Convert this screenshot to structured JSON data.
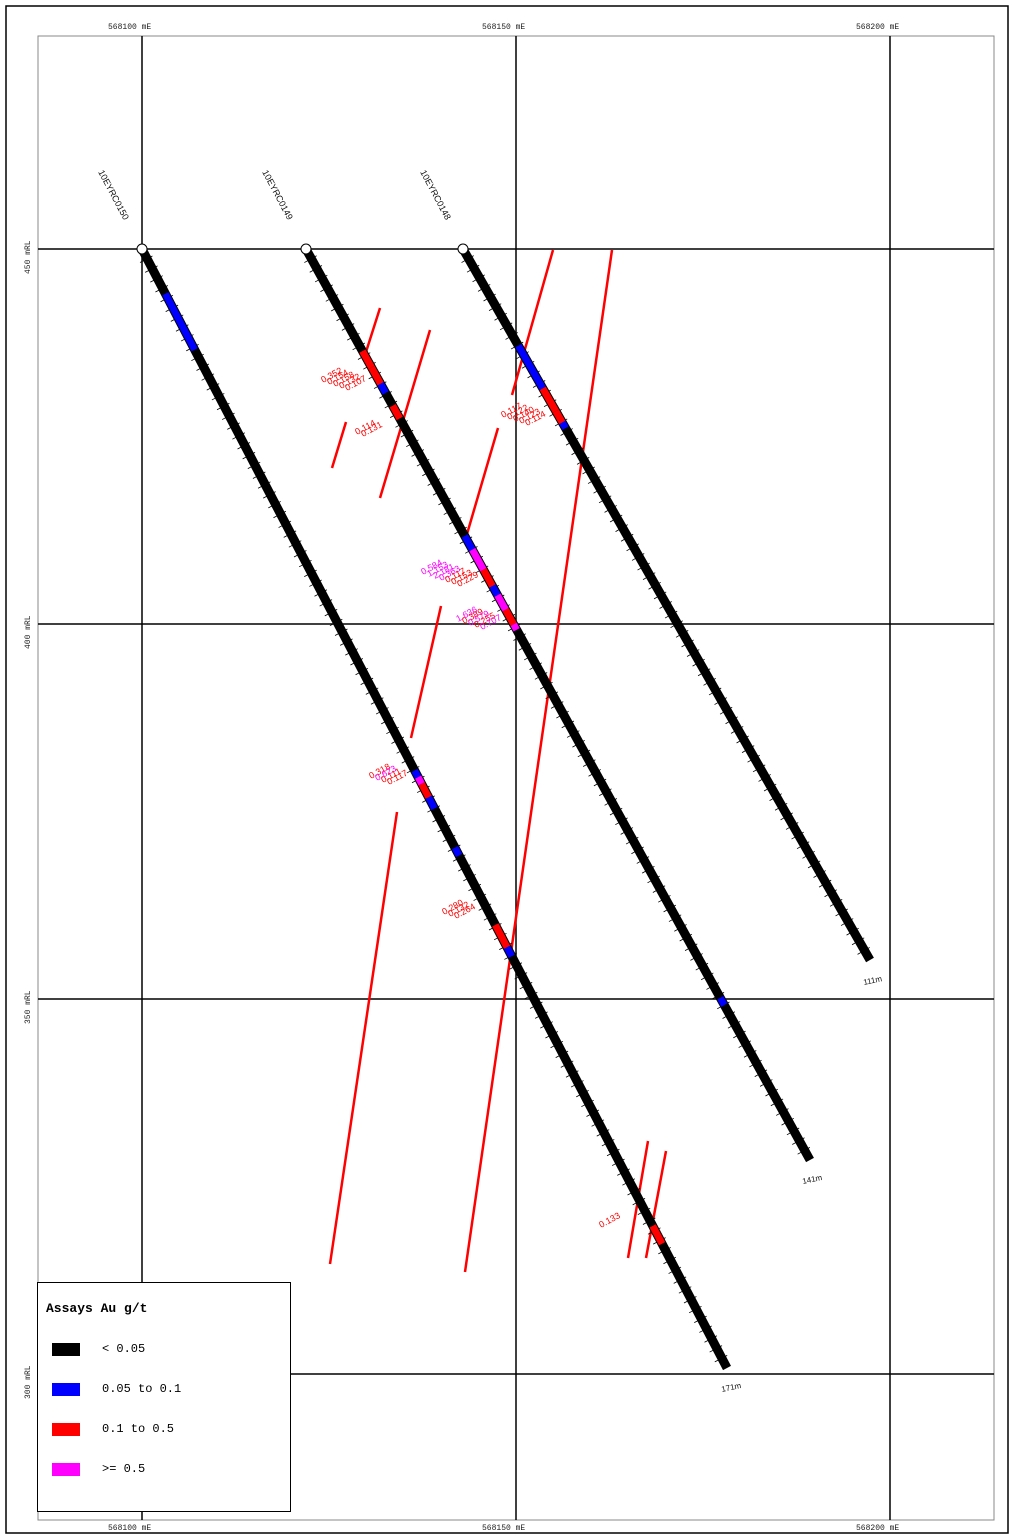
{
  "easting_labels": [
    "568100  mE",
    "568150  mE",
    "568200  mE"
  ],
  "rl_labels": [
    "450  mRL",
    "400  mRL",
    "350  mRL",
    "300  mRL"
  ],
  "holes": [
    {
      "id": "10EYRC0150",
      "end_label": "171m"
    },
    {
      "id": "10EYRC0149",
      "end_label": "141m"
    },
    {
      "id": "10EYRC0148",
      "end_label": "111m"
    }
  ],
  "assay_values": {
    "hole148": [
      "0.117",
      "0.122",
      "0.140",
      "0.123",
      "0.114"
    ],
    "hole149_upper": [
      "0.352",
      "0.154",
      "0.158",
      "0.132",
      "0.107"
    ],
    "hole149_mid": [
      "0.114",
      "0.131"
    ],
    "hole149_high": [
      "0.584",
      "1.153",
      "2.181",
      "0.363",
      "0.117",
      "0.153",
      "0.229"
    ],
    "hole149_high2": [
      "1.636",
      "0.389",
      "0.579",
      "0.255",
      "0.707"
    ],
    "hole150_a": [
      "0.318",
      "0.623",
      "0.111",
      "0.117"
    ],
    "hole150_b": [
      "0.280",
      "0.132",
      "0.264"
    ],
    "hole150_c": [
      "0.133"
    ]
  },
  "legend": {
    "title": "Assays Au g/t",
    "items": [
      {
        "label": "< 0.05",
        "color": "#000000"
      },
      {
        "label": "0.05 to 0.1",
        "color": "#0000ff"
      },
      {
        "label": "0.1 to 0.5",
        "color": "#ff0000"
      },
      {
        "label": ">= 0.5",
        "color": "#ff00ff"
      }
    ]
  },
  "colors": {
    "low": "#000000",
    "mid": "#0000ff",
    "high": "#ff0000",
    "vhigh": "#ff00ff",
    "interp": "#ff0000"
  }
}
